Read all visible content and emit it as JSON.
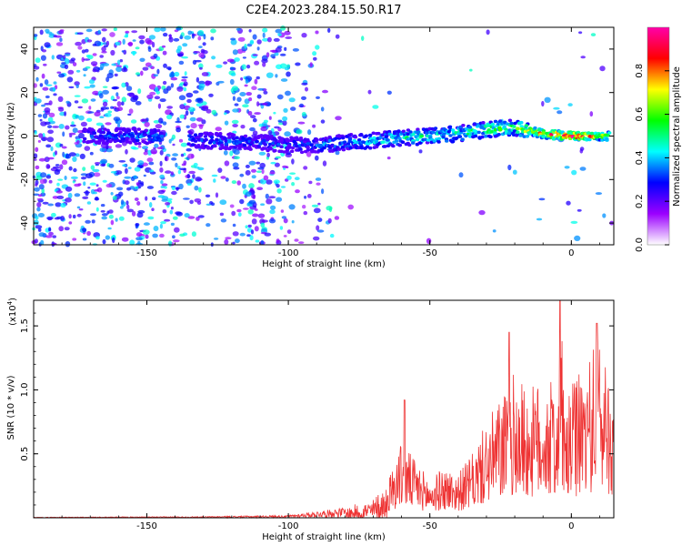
{
  "title": "C2E4.2023.284.15.50.R17",
  "chart_data": [
    {
      "type": "heatmap",
      "xlabel": "Height of straight line (km)",
      "ylabel": "Frequency (Hz)",
      "xlim": [
        -190,
        15
      ],
      "ylim": [
        -50,
        50
      ],
      "xticks": [
        -150,
        -100,
        -50,
        0
      ],
      "yticks": [
        -40,
        -20,
        0,
        20,
        40
      ],
      "colorbar": {
        "label": "Normalized spectral amplitude",
        "range": [
          0,
          1
        ],
        "ticks": [
          "0.0",
          "0.2",
          "0.4",
          "0.6",
          "0.8"
        ],
        "colors": [
          "#ffffff",
          "#9b00ff",
          "#0000ff",
          "#00ffff",
          "#00ff00",
          "#ffff00",
          "#ff0000",
          "#ff00aa"
        ]
      },
      "ridge": {
        "x": [
          -170,
          -150,
          -130,
          -110,
          -100,
          -90,
          -80,
          -70,
          -60,
          -50,
          -40,
          -30,
          -20,
          -10,
          0,
          15
        ],
        "freq": [
          0,
          0,
          -2,
          -3,
          -4,
          -4,
          -3,
          -2,
          -1,
          0,
          1,
          3,
          4,
          1,
          0,
          0
        ],
        "peak_amplitude": [
          0.3,
          0.35,
          0.35,
          0.3,
          0.3,
          0.35,
          0.4,
          0.45,
          0.5,
          0.5,
          0.5,
          0.55,
          0.55,
          0.8,
          0.95,
          0.6
        ]
      }
    },
    {
      "type": "line",
      "xlabel": "Height of straight line (km)",
      "ylabel": "SNR (10 * v/v)",
      "y_multiplier": "(x10",
      "y_exponent": "4",
      "y_multiplier_close": ")",
      "xlim": [
        -190,
        15
      ],
      "ylim": [
        0,
        1.7
      ],
      "xticks": [
        -150,
        -100,
        -50,
        0
      ],
      "yticks": [
        "0.5",
        "1.0",
        "1.5"
      ],
      "ytick_values": [
        0.5,
        1.0,
        1.5
      ],
      "color": "#ee3333",
      "envelope": {
        "x": [
          -190,
          -130,
          -100,
          -90,
          -80,
          -70,
          -65,
          -60,
          -55,
          -50,
          -45,
          -40,
          -35,
          -30,
          -25,
          -22,
          -20,
          -15,
          -10,
          -5,
          -4,
          -2,
          0,
          5,
          10,
          15
        ],
        "y": [
          0.005,
          0.01,
          0.02,
          0.05,
          0.08,
          0.15,
          0.3,
          0.6,
          0.45,
          0.3,
          0.4,
          0.35,
          0.5,
          0.75,
          0.95,
          1.05,
          1.15,
          1.0,
          1.1,
          1.05,
          1.7,
          0.8,
          1.05,
          1.2,
          1.45,
          1.1
        ]
      },
      "peaks": [
        {
          "x": -59,
          "y": 0.92
        },
        {
          "x": -22,
          "y": 1.45
        },
        {
          "x": -4,
          "y": 1.7
        },
        {
          "x": 9,
          "y": 1.52
        }
      ]
    }
  ]
}
